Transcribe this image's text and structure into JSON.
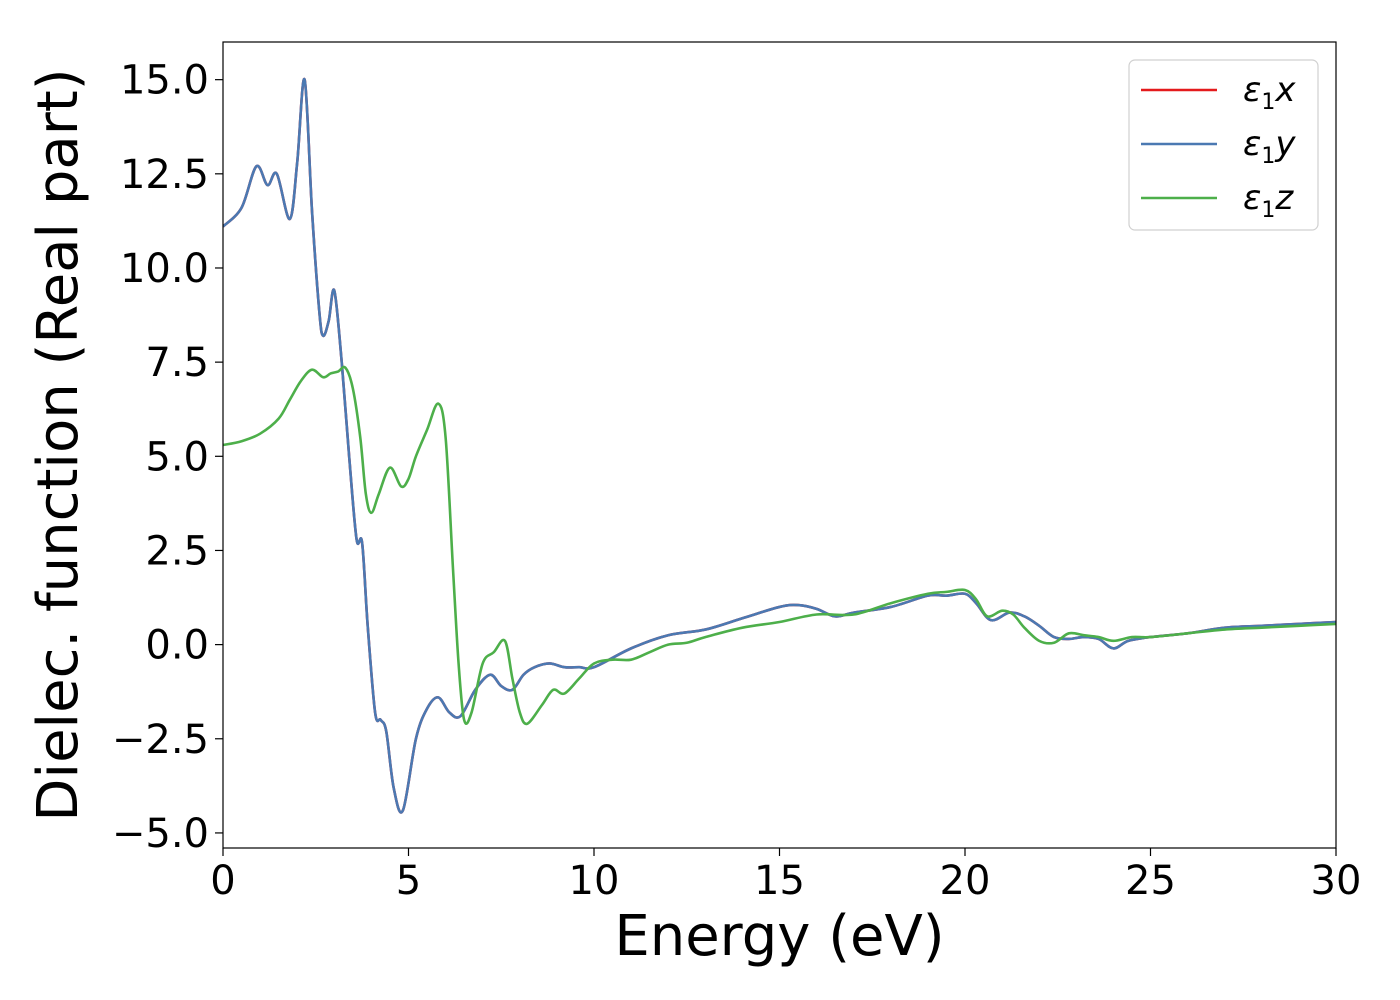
{
  "chart_data": {
    "type": "line",
    "title": "",
    "xlabel": "Energy (eV)",
    "ylabel": "Dielec. function (Real part)",
    "xlim": [
      0,
      30
    ],
    "ylim": [
      -5.4,
      16.0
    ],
    "xticks": [
      0,
      5,
      10,
      15,
      20,
      25,
      30
    ],
    "xtick_labels": [
      "0",
      "5",
      "10",
      "15",
      "20",
      "25",
      "30"
    ],
    "yticks": [
      -5.0,
      -2.5,
      0.0,
      2.5,
      5.0,
      7.5,
      10.0,
      12.5,
      15.0
    ],
    "ytick_labels": [
      "−5.0",
      "−2.5",
      "0.0",
      "2.5",
      "5.0",
      "7.5",
      "10.0",
      "12.5",
      "15.0"
    ],
    "grid": false,
    "legend_position": "top-right",
    "series": [
      {
        "name": "ε₁x",
        "color": "#e41a1c",
        "x": [
          0,
          0.5,
          0.9,
          1.2,
          1.45,
          1.8,
          2.0,
          2.2,
          2.4,
          2.6,
          2.7,
          2.85,
          3.0,
          3.2,
          3.4,
          3.6,
          3.75,
          3.9,
          4.1,
          4.25,
          4.4,
          4.6,
          4.85,
          5.2,
          5.5,
          5.8,
          6.1,
          6.4,
          6.8,
          7.2,
          7.5,
          7.8,
          8.1,
          8.4,
          8.8,
          9.2,
          9.6,
          10.0,
          11.0,
          12.0,
          13.0,
          14.0,
          15.0,
          15.5,
          16.0,
          16.5,
          17.0,
          18.0,
          19.0,
          19.5,
          20.0,
          20.3,
          20.7,
          21.2,
          21.6,
          22.0,
          22.4,
          22.8,
          23.2,
          23.6,
          24.0,
          24.4,
          25.0,
          26.0,
          27.0,
          28.0,
          29.0,
          30.0
        ],
        "y": [
          11.1,
          11.6,
          12.7,
          12.2,
          12.5,
          11.3,
          12.8,
          15.0,
          11.5,
          8.8,
          8.2,
          8.6,
          9.4,
          7.5,
          5.0,
          2.8,
          2.7,
          0.5,
          -1.8,
          -2.0,
          -2.3,
          -3.8,
          -4.4,
          -2.5,
          -1.7,
          -1.4,
          -1.8,
          -1.9,
          -1.2,
          -0.8,
          -1.1,
          -1.2,
          -0.8,
          -0.6,
          -0.5,
          -0.6,
          -0.6,
          -0.6,
          -0.1,
          0.25,
          0.4,
          0.7,
          1.0,
          1.05,
          0.95,
          0.75,
          0.85,
          1.0,
          1.3,
          1.3,
          1.35,
          1.1,
          0.65,
          0.85,
          0.75,
          0.5,
          0.2,
          0.15,
          0.2,
          0.15,
          -0.1,
          0.1,
          0.2,
          0.3,
          0.45,
          0.5,
          0.55,
          0.6
        ]
      },
      {
        "name": "ε₁y",
        "color": "#4b79b2",
        "x": [
          0,
          0.5,
          0.9,
          1.2,
          1.45,
          1.8,
          2.0,
          2.2,
          2.4,
          2.6,
          2.7,
          2.85,
          3.0,
          3.2,
          3.4,
          3.6,
          3.75,
          3.9,
          4.1,
          4.25,
          4.4,
          4.6,
          4.85,
          5.2,
          5.5,
          5.8,
          6.1,
          6.4,
          6.8,
          7.2,
          7.5,
          7.8,
          8.1,
          8.4,
          8.8,
          9.2,
          9.6,
          10.0,
          11.0,
          12.0,
          13.0,
          14.0,
          15.0,
          15.5,
          16.0,
          16.5,
          17.0,
          18.0,
          19.0,
          19.5,
          20.0,
          20.3,
          20.7,
          21.2,
          21.6,
          22.0,
          22.4,
          22.8,
          23.2,
          23.6,
          24.0,
          24.4,
          25.0,
          26.0,
          27.0,
          28.0,
          29.0,
          30.0
        ],
        "y": [
          11.1,
          11.6,
          12.7,
          12.2,
          12.5,
          11.3,
          12.8,
          15.0,
          11.5,
          8.8,
          8.2,
          8.6,
          9.4,
          7.5,
          5.0,
          2.8,
          2.7,
          0.5,
          -1.8,
          -2.0,
          -2.3,
          -3.8,
          -4.4,
          -2.5,
          -1.7,
          -1.4,
          -1.8,
          -1.9,
          -1.2,
          -0.8,
          -1.1,
          -1.2,
          -0.8,
          -0.6,
          -0.5,
          -0.6,
          -0.6,
          -0.6,
          -0.1,
          0.25,
          0.4,
          0.7,
          1.0,
          1.05,
          0.95,
          0.75,
          0.85,
          1.0,
          1.3,
          1.3,
          1.35,
          1.1,
          0.65,
          0.85,
          0.75,
          0.5,
          0.2,
          0.15,
          0.2,
          0.15,
          -0.1,
          0.1,
          0.2,
          0.3,
          0.45,
          0.5,
          0.55,
          0.6
        ]
      },
      {
        "name": "ε₁z",
        "color": "#4daf4a",
        "x": [
          0,
          0.5,
          1.0,
          1.5,
          1.8,
          2.1,
          2.4,
          2.7,
          2.9,
          3.1,
          3.3,
          3.5,
          3.7,
          3.85,
          4.0,
          4.2,
          4.5,
          4.8,
          5.0,
          5.2,
          5.5,
          5.8,
          6.0,
          6.2,
          6.35,
          6.5,
          6.7,
          7.0,
          7.3,
          7.6,
          7.8,
          8.0,
          8.2,
          8.6,
          8.9,
          9.2,
          9.6,
          10.0,
          10.5,
          11.0,
          11.5,
          12.0,
          12.5,
          13.0,
          14.0,
          15.0,
          16.0,
          17.0,
          18.0,
          19.0,
          19.5,
          20.0,
          20.3,
          20.6,
          21.0,
          21.3,
          21.6,
          22.0,
          22.4,
          22.8,
          23.2,
          23.6,
          24.0,
          24.5,
          25.0,
          26.0,
          27.0,
          28.0,
          29.0,
          30.0
        ],
        "y": [
          5.3,
          5.4,
          5.6,
          6.0,
          6.5,
          7.0,
          7.3,
          7.1,
          7.2,
          7.25,
          7.35,
          6.8,
          5.5,
          4.0,
          3.5,
          4.0,
          4.7,
          4.2,
          4.4,
          5.0,
          5.7,
          6.4,
          5.5,
          2.0,
          -0.5,
          -2.0,
          -1.8,
          -0.5,
          -0.2,
          0.1,
          -0.9,
          -1.8,
          -2.1,
          -1.6,
          -1.2,
          -1.3,
          -0.9,
          -0.5,
          -0.4,
          -0.4,
          -0.2,
          0.0,
          0.05,
          0.2,
          0.45,
          0.6,
          0.8,
          0.8,
          1.1,
          1.35,
          1.4,
          1.45,
          1.2,
          0.75,
          0.9,
          0.8,
          0.45,
          0.1,
          0.05,
          0.3,
          0.25,
          0.2,
          0.1,
          0.2,
          0.2,
          0.3,
          0.4,
          0.45,
          0.5,
          0.55
        ]
      }
    ]
  }
}
